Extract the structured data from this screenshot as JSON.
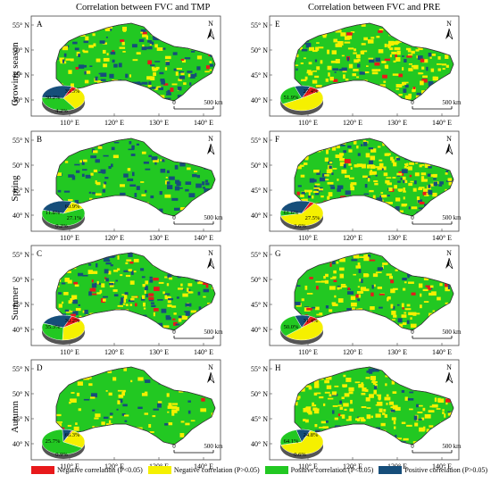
{
  "column_titles": [
    "Correlation between FVC and TMP",
    "Correlation between FVC and PRE"
  ],
  "row_labels": [
    "Growing season",
    "Spring",
    "Summer",
    "Autumn"
  ],
  "lat_ticks": [
    "55° N",
    "50° N",
    "45° N",
    "40° N"
  ],
  "lon_ticks": [
    "110° E",
    "120° E",
    "130° E",
    "140° E"
  ],
  "scalebar": {
    "zero": "0",
    "value": "500 km"
  },
  "north_symbol": "N",
  "colors": {
    "neg_sig": "#e8191b",
    "neg": "#f5f000",
    "pos_sig": "#22c822",
    "pos": "#164e7a"
  },
  "legend": [
    {
      "key": "neg_sig",
      "label": "Negative correlation (P<0.05)"
    },
    {
      "key": "neg",
      "label": "Negative correlation (P>0.05)"
    },
    {
      "key": "pos_sig",
      "label": "Positive correlation (P<0.05)"
    },
    {
      "key": "pos",
      "label": "Positive correlation (P>0.05)"
    }
  ],
  "panels": [
    {
      "letter": "A",
      "labels": {
        "yellow": "30.2%",
        "green": "35.3%",
        "navy": "",
        "red": "4.2%"
      },
      "fractions": {
        "neg_sig": 0.042,
        "neg": 0.302,
        "pos_sig": 0.353,
        "pos": 0.303
      }
    },
    {
      "letter": "E",
      "labels": {
        "yellow": "51.9%",
        "green": "27.4%",
        "navy": "",
        "red": ""
      },
      "fractions": {
        "neg_sig": 0.09,
        "neg": 0.519,
        "pos_sig": 0.274,
        "pos": 0.117
      }
    },
    {
      "letter": "B",
      "labels": {
        "yellow": "11.8%",
        "green": "60.9%",
        "navy": "27.1%",
        "red": "0.2%"
      },
      "fractions": {
        "neg_sig": 0.002,
        "neg": 0.118,
        "pos_sig": 0.609,
        "pos": 0.271
      }
    },
    {
      "letter": "F",
      "labels": {
        "yellow": "61.6%",
        "green": "",
        "navy": "27.5%",
        "red": "3.6%"
      },
      "fractions": {
        "neg_sig": 0.036,
        "neg": 0.616,
        "pos_sig": 0.073,
        "pos": 0.275
      }
    },
    {
      "letter": "C",
      "labels": {
        "yellow": "35.3%",
        "green": "30.2%",
        "navy": "",
        "red": ""
      },
      "fractions": {
        "neg_sig": 0.09,
        "neg": 0.353,
        "pos_sig": 0.302,
        "pos": 0.255
      }
    },
    {
      "letter": "G",
      "labels": {
        "yellow": "50.0%",
        "green": "31.4%",
        "navy": "",
        "red": ""
      },
      "fractions": {
        "neg_sig": 0.07,
        "neg": 0.5,
        "pos_sig": 0.314,
        "pos": 0.116
      }
    },
    {
      "letter": "D",
      "labels": {
        "yellow": "25.7%",
        "green": "66.3%",
        "navy": "",
        "red": "0.9%"
      },
      "fractions": {
        "neg_sig": 0.009,
        "neg": 0.257,
        "pos_sig": 0.663,
        "pos": 0.071
      }
    },
    {
      "letter": "H",
      "labels": {
        "yellow": "64.1%",
        "green": "24.8%",
        "navy": "",
        "red": "0.6%"
      },
      "fractions": {
        "neg_sig": 0.006,
        "neg": 0.641,
        "pos_sig": 0.248,
        "pos": 0.105
      }
    }
  ]
}
